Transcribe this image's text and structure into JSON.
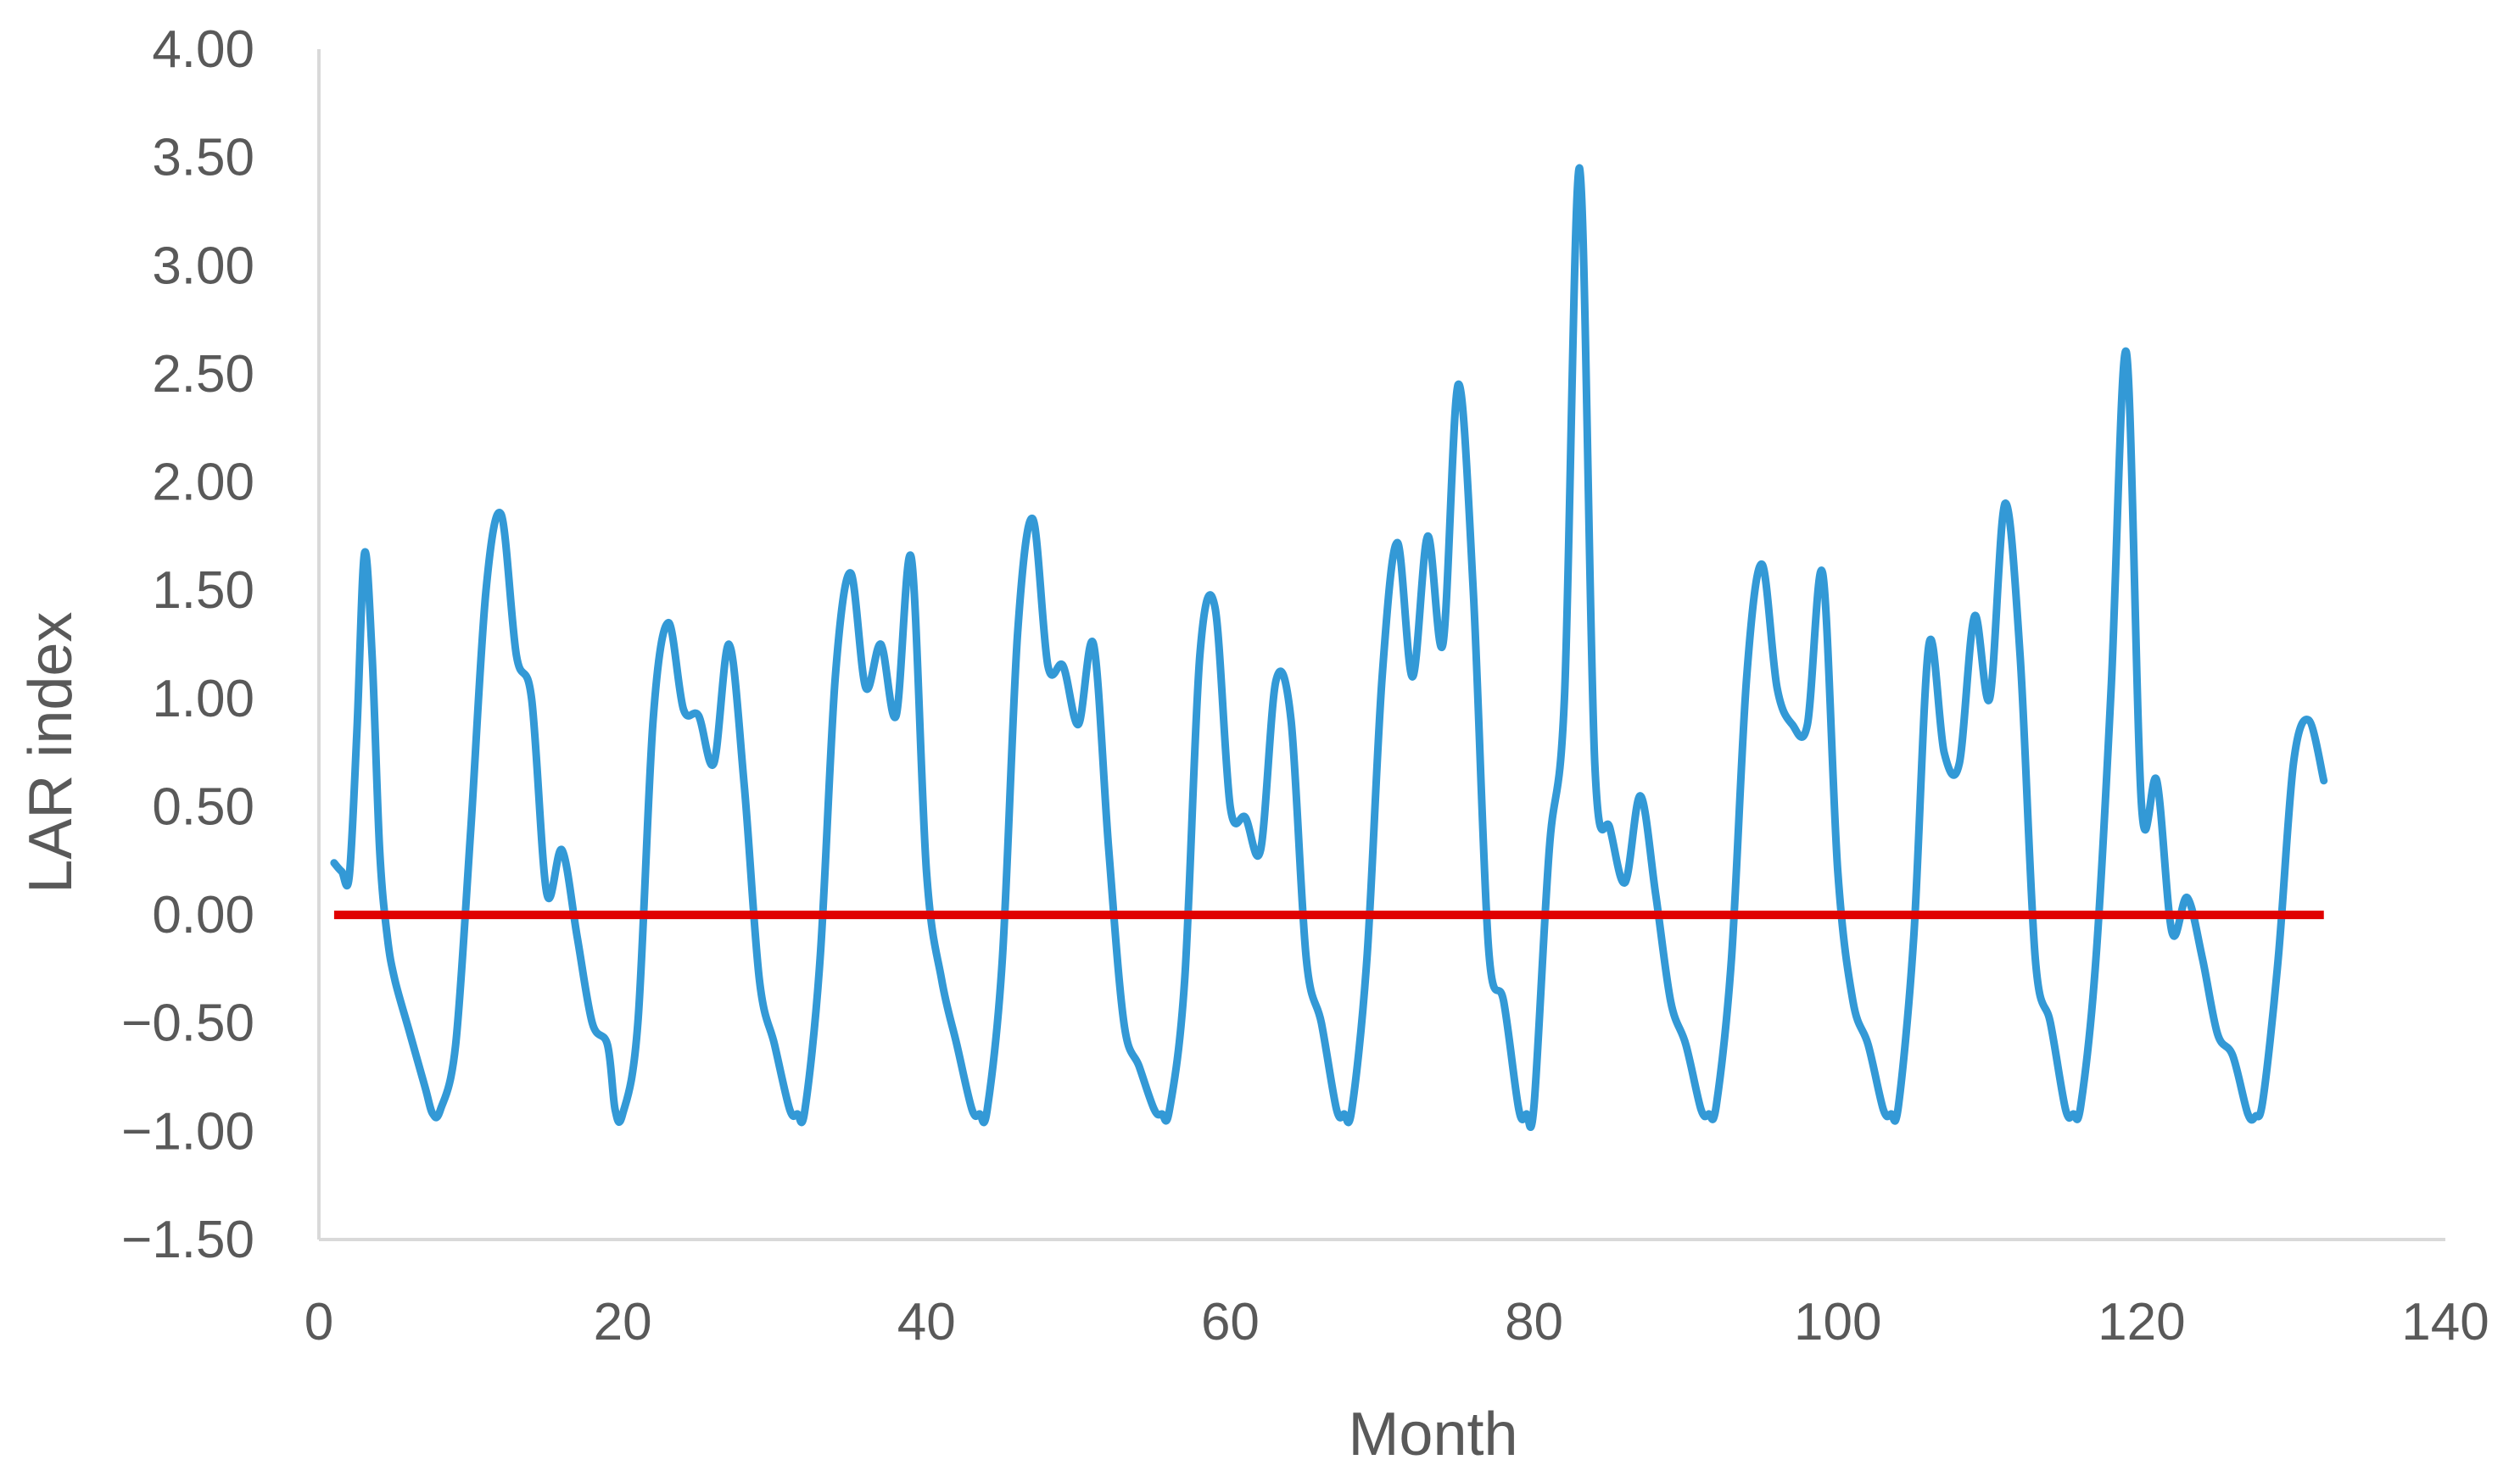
{
  "chart_data": {
    "type": "line",
    "title": "",
    "xlabel": "Month",
    "ylabel": "LAR index",
    "xlim": [
      0,
      140
    ],
    "ylim": [
      -1.5,
      4.0
    ],
    "x_ticks": [
      "0",
      "20",
      "40",
      "60",
      "80",
      "100",
      "120",
      "140"
    ],
    "y_ticks": [
      "−1.50",
      "−1.00",
      "−0.50",
      "0.00",
      "0.50",
      "1.00",
      "1.50",
      "2.00",
      "2.50",
      "3.00",
      "3.50",
      "4.00"
    ],
    "grid": false,
    "legend": "none",
    "series_color": "#3399d6",
    "reference_line": {
      "y": 0,
      "x_start": 1,
      "x_end": 132,
      "color": "#e00000"
    },
    "series": [
      {
        "x": [
          1,
          1.5,
          2,
          2.5,
          3,
          3.5,
          4,
          4.5,
          5,
          6,
          7,
          7.5,
          8,
          9,
          10,
          11,
          12,
          13,
          14,
          15,
          16,
          17,
          18,
          19,
          19.5,
          20,
          21,
          22,
          23,
          24,
          25,
          26,
          27,
          28,
          29,
          30,
          31,
          31.5,
          32,
          33,
          34,
          35,
          36,
          37,
          38,
          39,
          40,
          41,
          42,
          43,
          43.5,
          44,
          45,
          46,
          47,
          48,
          49,
          50,
          51,
          52,
          53,
          54,
          55,
          55.5,
          56,
          57,
          58,
          59,
          60,
          61,
          62,
          63,
          64,
          65,
          66,
          67,
          67.5,
          68,
          69,
          70,
          71,
          72,
          73,
          74,
          75,
          76,
          77,
          78,
          79,
          79.5,
          80,
          81,
          82,
          83,
          84,
          85,
          86,
          87,
          88,
          89,
          90,
          91,
          91.5,
          92,
          93,
          94,
          95,
          96,
          97,
          98,
          99,
          100,
          101,
          102,
          103,
          103.5,
          104,
          105,
          106,
          107,
          108,
          109,
          110,
          111,
          112,
          113,
          114,
          115,
          115.5,
          116,
          117,
          118,
          119,
          120,
          121,
          122,
          123,
          124,
          125,
          126,
          127,
          127.5,
          128,
          129,
          130,
          131,
          132
        ],
        "values": [
          0.24,
          0.2,
          0.18,
          0.85,
          1.67,
          1.2,
          0.3,
          -0.1,
          -0.3,
          -0.55,
          -0.8,
          -0.92,
          -0.9,
          -0.6,
          0.4,
          1.5,
          1.85,
          1.2,
          1.0,
          0.1,
          0.3,
          -0.1,
          -0.5,
          -0.6,
          -0.9,
          -0.92,
          -0.5,
          0.9,
          1.35,
          0.95,
          0.92,
          0.7,
          1.25,
          0.6,
          -0.3,
          -0.6,
          -0.9,
          -0.92,
          -0.9,
          -0.2,
          1.1,
          1.58,
          1.05,
          1.25,
          0.92,
          1.65,
          0.2,
          -0.3,
          -0.6,
          -0.9,
          -0.92,
          -0.9,
          -0.2,
          1.3,
          1.83,
          1.15,
          1.15,
          0.88,
          1.25,
          0.3,
          -0.5,
          -0.7,
          -0.9,
          -0.92,
          -0.9,
          -0.3,
          1.2,
          1.42,
          0.5,
          0.45,
          0.3,
          1.08,
          0.9,
          -0.2,
          -0.5,
          -0.9,
          -0.92,
          -0.9,
          -0.2,
          1.1,
          1.72,
          1.1,
          1.75,
          1.25,
          2.45,
          1.5,
          -0.15,
          -0.4,
          -0.9,
          -0.92,
          -0.88,
          0.3,
          1.0,
          3.45,
          0.7,
          0.4,
          0.15,
          0.55,
          0.1,
          -0.4,
          -0.6,
          -0.9,
          -0.92,
          -0.88,
          -0.2,
          1.1,
          1.62,
          1.05,
          0.88,
          0.88,
          1.58,
          0.2,
          -0.4,
          -0.6,
          -0.9,
          -0.92,
          -0.88,
          -0.1,
          1.25,
          0.75,
          0.7,
          1.38,
          1.0,
          1.9,
          1.2,
          -0.2,
          -0.5,
          -0.9,
          -0.92,
          -0.88,
          -0.2,
          1.05,
          2.6,
          0.5,
          0.62,
          -0.08,
          0.08,
          -0.2,
          -0.55,
          -0.65,
          -0.92,
          -0.93,
          -0.85,
          -0.2,
          0.7,
          0.9,
          0.62
        ]
      }
    ]
  }
}
